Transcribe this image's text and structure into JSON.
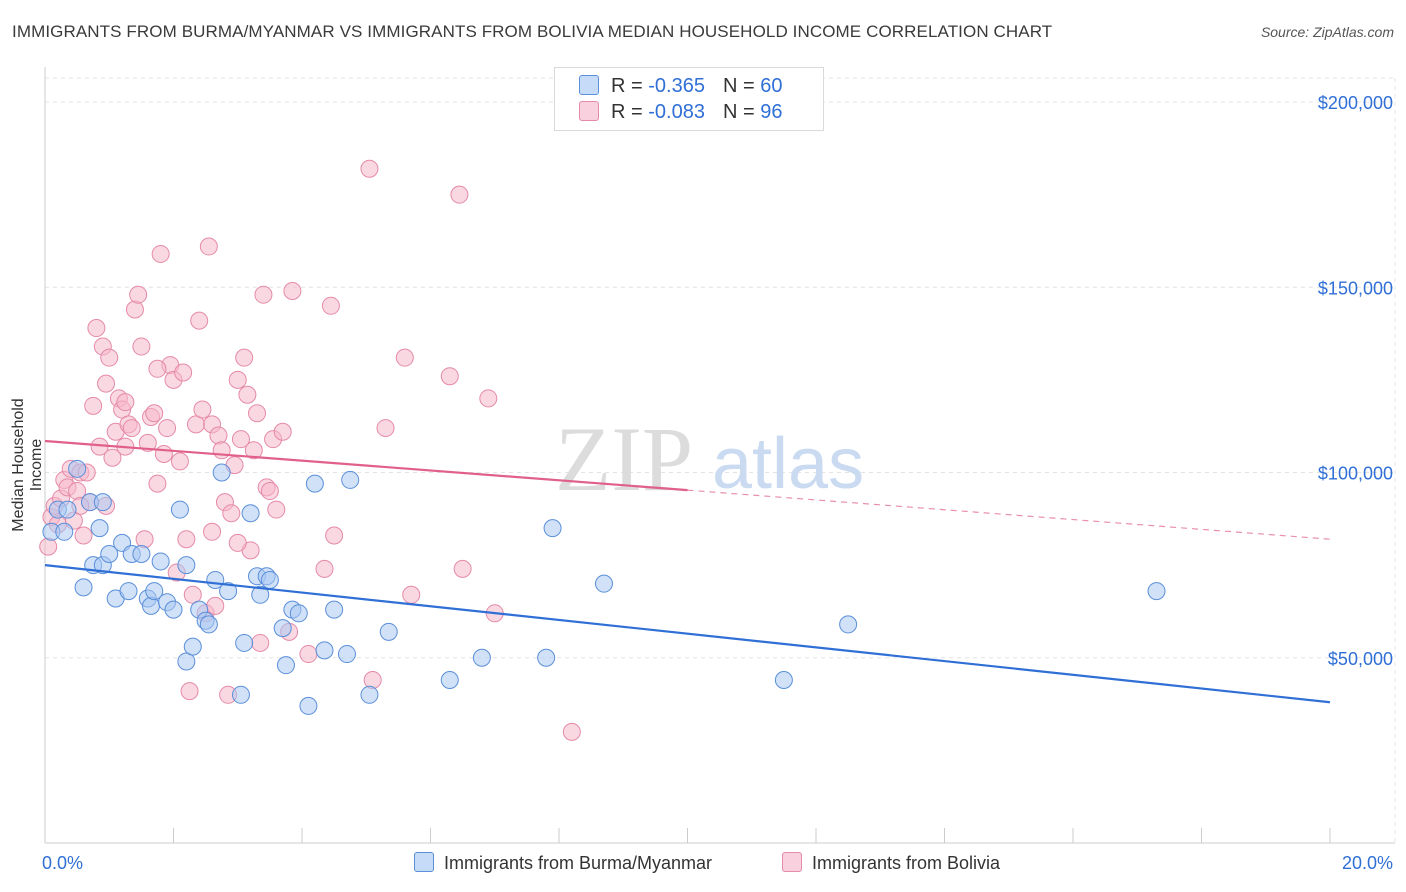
{
  "title": "IMMIGRANTS FROM BURMA/MYANMAR VS IMMIGRANTS FROM BOLIVIA MEDIAN HOUSEHOLD INCOME CORRELATION CHART",
  "source": "Source: ZipAtlas.com",
  "watermark": {
    "zip": "ZIP",
    "atlas": "atlas"
  },
  "legend": {
    "rows": [
      {
        "r_label": "R = ",
        "r_value": "-0.365",
        "n_label": "N = ",
        "n_value": "60",
        "color": "#a9c8f2"
      },
      {
        "r_label": "R = ",
        "r_value": "-0.083",
        "n_label": "N = ",
        "n_value": "96",
        "color": "#f5b8cb"
      }
    ]
  },
  "bottom_legend": [
    "Immigrants from Burma/Myanmar",
    "Immigrants from Bolivia"
  ],
  "colors": {
    "blue_fill": "#a9c8f2",
    "blue_stroke": "#5b8fd9",
    "blue_line": "#2f6fd6",
    "pink_fill": "#f5b8cb",
    "pink_stroke": "#e58aa8",
    "pink_line": "#e0608a",
    "grid": "#e4e4e4",
    "axis_label": "#2f6fd6"
  },
  "chart_data": {
    "type": "scatter",
    "title": "",
    "xlabel": "",
    "ylabel": "Median Household Income",
    "xlim": [
      0,
      20
    ],
    "ylim": [
      0,
      210000
    ],
    "x_tick_labels": [
      "0.0%",
      "20.0%"
    ],
    "y_ticks": [
      50000,
      100000,
      150000,
      200000
    ],
    "y_tick_labels": [
      "$50,000",
      "$100,000",
      "$150,000",
      "$200,000"
    ],
    "grid": true,
    "legend_position": "top-center",
    "series": [
      {
        "name": "Immigrants from Burma/Myanmar",
        "R": -0.365,
        "N": 60,
        "trend": {
          "x": [
            0,
            20
          ],
          "y": [
            75000,
            38000
          ],
          "dashed_from": null
        },
        "points": [
          [
            0.1,
            84000
          ],
          [
            0.2,
            90000
          ],
          [
            0.3,
            84000
          ],
          [
            0.35,
            90000
          ],
          [
            0.5,
            101000
          ],
          [
            0.7,
            92000
          ],
          [
            0.75,
            75000
          ],
          [
            0.6,
            69000
          ],
          [
            0.9,
            92000
          ],
          [
            0.85,
            85000
          ],
          [
            0.9,
            75000
          ],
          [
            1.0,
            78000
          ],
          [
            1.1,
            66000
          ],
          [
            1.2,
            81000
          ],
          [
            1.3,
            68000
          ],
          [
            1.35,
            78000
          ],
          [
            1.5,
            78000
          ],
          [
            1.6,
            66000
          ],
          [
            1.65,
            64000
          ],
          [
            1.7,
            68000
          ],
          [
            1.8,
            76000
          ],
          [
            1.9,
            65000
          ],
          [
            2.0,
            63000
          ],
          [
            2.1,
            90000
          ],
          [
            2.2,
            49000
          ],
          [
            2.2,
            75000
          ],
          [
            2.3,
            53000
          ],
          [
            2.4,
            63000
          ],
          [
            2.5,
            60000
          ],
          [
            2.55,
            59000
          ],
          [
            2.65,
            71000
          ],
          [
            2.75,
            100000
          ],
          [
            2.85,
            68000
          ],
          [
            3.05,
            40000
          ],
          [
            3.1,
            54000
          ],
          [
            3.2,
            89000
          ],
          [
            3.3,
            72000
          ],
          [
            3.35,
            67000
          ],
          [
            3.45,
            72000
          ],
          [
            3.5,
            71000
          ],
          [
            3.7,
            58000
          ],
          [
            3.75,
            48000
          ],
          [
            3.85,
            63000
          ],
          [
            3.95,
            62000
          ],
          [
            4.1,
            37000
          ],
          [
            4.2,
            97000
          ],
          [
            4.35,
            52000
          ],
          [
            4.5,
            63000
          ],
          [
            4.7,
            51000
          ],
          [
            4.75,
            98000
          ],
          [
            5.05,
            40000
          ],
          [
            5.35,
            57000
          ],
          [
            6.3,
            44000
          ],
          [
            6.8,
            50000
          ],
          [
            7.8,
            50000
          ],
          [
            7.9,
            85000
          ],
          [
            8.7,
            70000
          ],
          [
            11.5,
            44000
          ],
          [
            12.5,
            59000
          ],
          [
            17.3,
            68000
          ]
        ]
      },
      {
        "name": "Immigrants from Bolivia",
        "R": -0.083,
        "N": 96,
        "trend": {
          "x": [
            0,
            20
          ],
          "y": [
            108500,
            82000
          ],
          "dashed_from": 10
        },
        "points": [
          [
            0.05,
            80000
          ],
          [
            0.1,
            88000
          ],
          [
            0.15,
            91000
          ],
          [
            0.2,
            86000
          ],
          [
            0.25,
            93000
          ],
          [
            0.3,
            98000
          ],
          [
            0.35,
            96000
          ],
          [
            0.4,
            101000
          ],
          [
            0.45,
            87000
          ],
          [
            0.5,
            95000
          ],
          [
            0.55,
            100000
          ],
          [
            0.6,
            83000
          ],
          [
            0.65,
            100000
          ],
          [
            0.7,
            92000
          ],
          [
            0.75,
            118000
          ],
          [
            0.8,
            139000
          ],
          [
            0.85,
            107000
          ],
          [
            0.9,
            134000
          ],
          [
            0.95,
            124000
          ],
          [
            1.0,
            131000
          ],
          [
            1.05,
            104000
          ],
          [
            1.1,
            111000
          ],
          [
            1.15,
            120000
          ],
          [
            1.2,
            117000
          ],
          [
            1.25,
            119000
          ],
          [
            1.3,
            113000
          ],
          [
            1.35,
            112000
          ],
          [
            1.4,
            144000
          ],
          [
            1.45,
            148000
          ],
          [
            1.5,
            134000
          ],
          [
            1.55,
            82000
          ],
          [
            1.6,
            108000
          ],
          [
            1.65,
            115000
          ],
          [
            1.7,
            116000
          ],
          [
            1.75,
            97000
          ],
          [
            1.8,
            159000
          ],
          [
            1.85,
            105000
          ],
          [
            1.9,
            112000
          ],
          [
            1.95,
            129000
          ],
          [
            2.0,
            125000
          ],
          [
            2.05,
            73000
          ],
          [
            2.1,
            103000
          ],
          [
            2.15,
            127000
          ],
          [
            2.2,
            82000
          ],
          [
            2.25,
            41000
          ],
          [
            2.3,
            67000
          ],
          [
            2.35,
            113000
          ],
          [
            2.4,
            141000
          ],
          [
            2.45,
            117000
          ],
          [
            2.5,
            62000
          ],
          [
            2.55,
            161000
          ],
          [
            2.6,
            113000
          ],
          [
            2.65,
            64000
          ],
          [
            2.7,
            110000
          ],
          [
            2.75,
            106000
          ],
          [
            2.8,
            92000
          ],
          [
            2.85,
            40000
          ],
          [
            2.9,
            89000
          ],
          [
            2.95,
            102000
          ],
          [
            3.0,
            125000
          ],
          [
            3.05,
            109000
          ],
          [
            3.1,
            131000
          ],
          [
            3.15,
            121000
          ],
          [
            3.2,
            79000
          ],
          [
            3.25,
            106000
          ],
          [
            3.3,
            116000
          ],
          [
            3.35,
            54000
          ],
          [
            3.4,
            148000
          ],
          [
            3.45,
            96000
          ],
          [
            3.5,
            95000
          ],
          [
            3.55,
            109000
          ],
          [
            3.6,
            90000
          ],
          [
            3.7,
            111000
          ],
          [
            3.8,
            57000
          ],
          [
            3.85,
            149000
          ],
          [
            4.1,
            51000
          ],
          [
            4.35,
            74000
          ],
          [
            4.45,
            145000
          ],
          [
            4.5,
            83000
          ],
          [
            5.05,
            182000
          ],
          [
            5.1,
            44000
          ],
          [
            5.3,
            112000
          ],
          [
            5.6,
            131000
          ],
          [
            5.7,
            67000
          ],
          [
            6.3,
            126000
          ],
          [
            6.45,
            175000
          ],
          [
            6.5,
            74000
          ],
          [
            6.9,
            120000
          ],
          [
            7.0,
            62000
          ],
          [
            8.2,
            30000
          ],
          [
            0.55,
            91000
          ],
          [
            0.95,
            91000
          ],
          [
            1.25,
            107000
          ],
          [
            1.75,
            128000
          ],
          [
            2.6,
            84000
          ],
          [
            3.0,
            81000
          ]
        ]
      }
    ]
  }
}
